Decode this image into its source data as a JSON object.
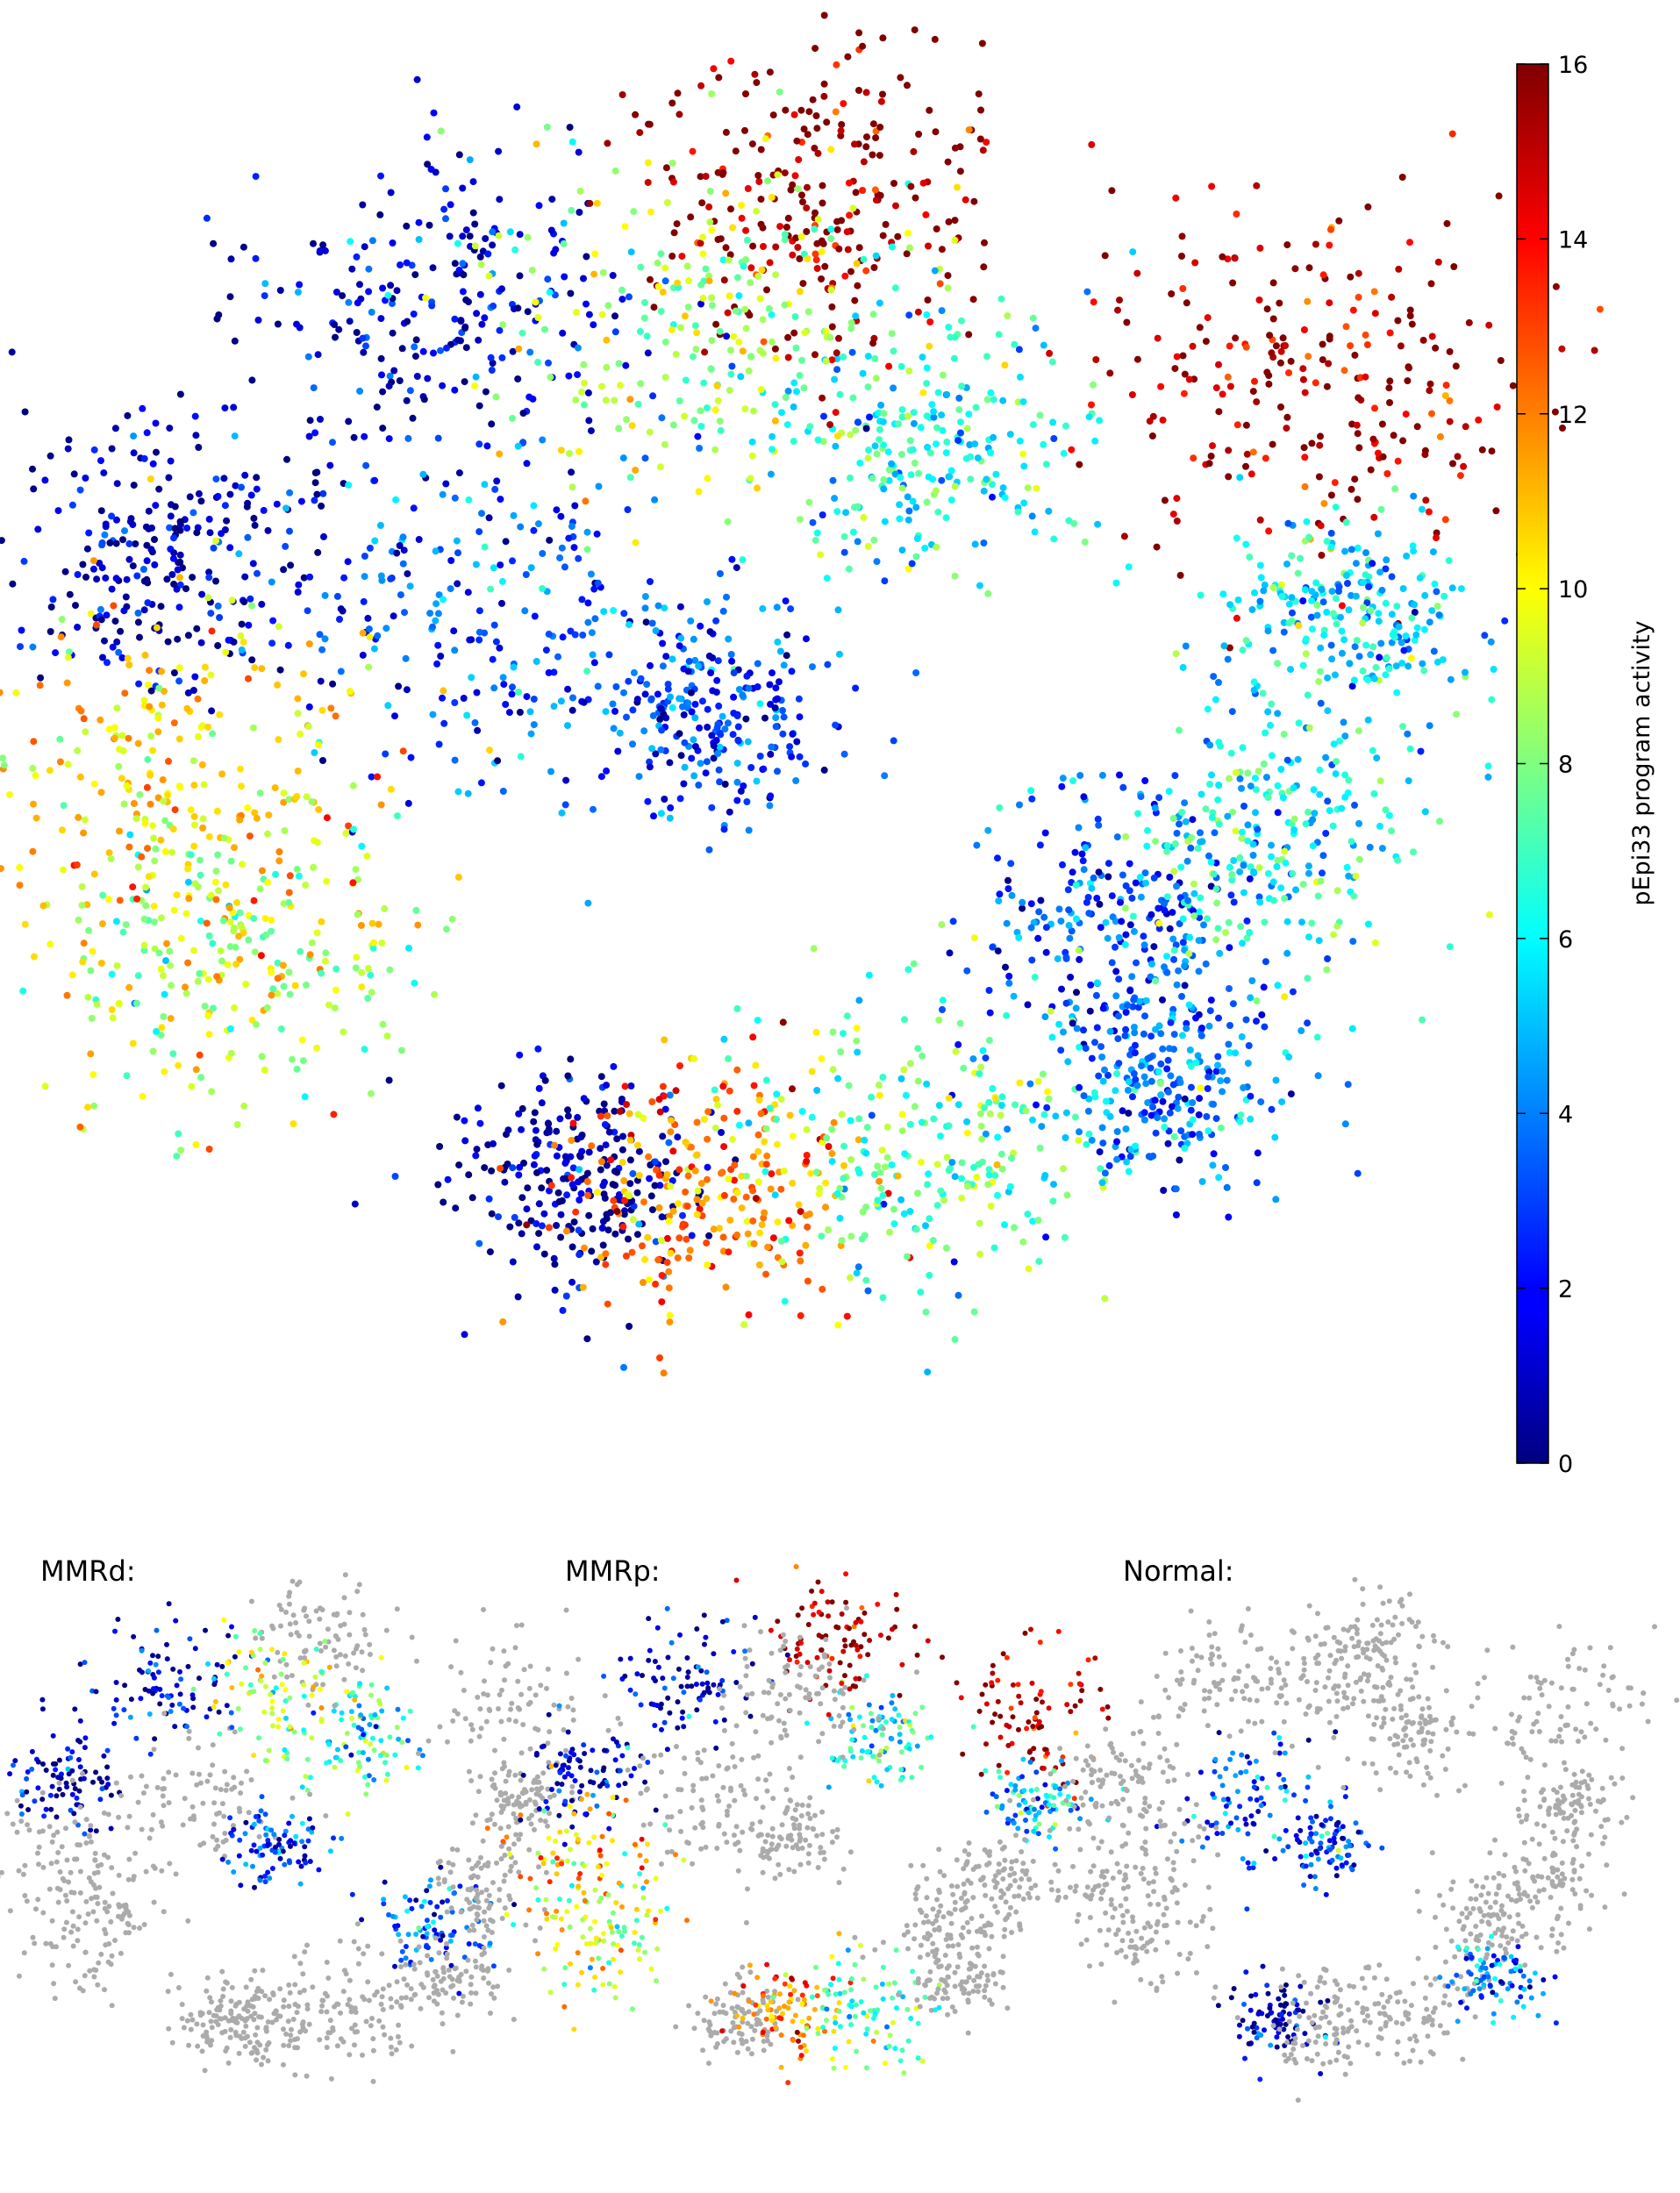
{
  "figure": {
    "colormap": "jet",
    "background": "#ffffff",
    "nan_color": "#ababab"
  },
  "chart_data": [
    {
      "type": "scatter",
      "panel": "main",
      "title": "",
      "xlabel": "",
      "ylabel": "",
      "colorbar": {
        "label": "pEpi33 program activity",
        "range": [
          0,
          16
        ],
        "ticks": [
          0,
          2,
          4,
          6,
          8,
          10,
          12,
          14,
          16
        ],
        "tick_labels": [
          "0",
          "2",
          "4",
          "6",
          "8",
          "10",
          "12",
          "14",
          "16"
        ]
      },
      "axes_visible": false,
      "clusters": [
        {
          "id": 1,
          "x": -0.85,
          "y": 0.3,
          "value": 0.8
        },
        {
          "id": 2,
          "x": -0.45,
          "y": 0.65,
          "value": 1.2
        },
        {
          "id": 3,
          "x": -0.35,
          "y": 0.2,
          "value": 3.2
        },
        {
          "id": 4,
          "x": -0.05,
          "y": 0.05,
          "value": 2.6
        },
        {
          "id": 5,
          "x": 0.28,
          "y": 0.45,
          "value": 6.2
        },
        {
          "id": 6,
          "x": 0.12,
          "y": 0.82,
          "value": 16.0
        },
        {
          "id": 7,
          "x": 0.84,
          "y": 0.55,
          "value": 15.2
        },
        {
          "id": 8,
          "x": 0.88,
          "y": 0.2,
          "value": 5.5
        },
        {
          "id": 9,
          "x": 0.55,
          "y": -0.25,
          "value": 3.2
        },
        {
          "id": 10,
          "x": -0.75,
          "y": -0.3,
          "value": 9.0
        },
        {
          "id": 11,
          "x": -0.82,
          "y": -0.02,
          "value": 10.5
        },
        {
          "id": 12,
          "x": -0.25,
          "y": -0.62,
          "value": 0.6
        },
        {
          "id": 13,
          "x": -0.05,
          "y": -0.62,
          "value": 12.0
        },
        {
          "id": 14,
          "x": 0.26,
          "y": -0.58,
          "value": 7.5
        },
        {
          "id": 15,
          "x": -0.05,
          "y": 0.62,
          "value": 8.5
        },
        {
          "id": 16,
          "x": 0.6,
          "y": -0.48,
          "value": 3.8
        },
        {
          "id": 17,
          "x": 0.75,
          "y": -0.12,
          "value": 6.2
        }
      ]
    },
    {
      "type": "scatter",
      "panel": "MMRd",
      "label": "MMRd:",
      "colormap": "jet",
      "value_range": [
        0,
        16
      ],
      "axes_visible": false
    },
    {
      "type": "scatter",
      "panel": "MMRp",
      "label": "MMRp:",
      "colormap": "jet",
      "value_range": [
        0,
        16
      ],
      "axes_visible": false
    },
    {
      "type": "scatter",
      "panel": "Normal",
      "label": "Normal:",
      "colormap": "jet",
      "value_range": [
        0,
        16
      ],
      "axes_visible": false
    }
  ]
}
